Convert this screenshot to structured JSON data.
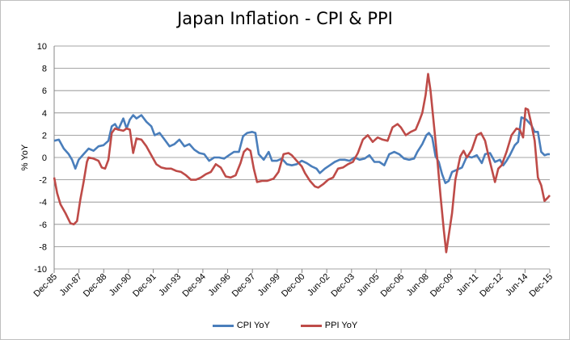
{
  "chart_data": {
    "type": "line",
    "title": "Japan Inflation - CPI & PPI",
    "xlabel": "",
    "ylabel": "% YoY",
    "ylim": [
      -10,
      10
    ],
    "yticks": [
      -10,
      -8,
      -6,
      -4,
      -2,
      0,
      2,
      4,
      6,
      8,
      10
    ],
    "xlim": [
      1985.917,
      2015.917
    ],
    "xticks": [
      {
        "label": "Dec-85",
        "t": 1985.917
      },
      {
        "label": "Jun-87",
        "t": 1987.417
      },
      {
        "label": "Dec-88",
        "t": 1988.917
      },
      {
        "label": "Jun-90",
        "t": 1990.417
      },
      {
        "label": "Dec-91",
        "t": 1991.917
      },
      {
        "label": "Jun-93",
        "t": 1993.417
      },
      {
        "label": "Dec-94",
        "t": 1994.917
      },
      {
        "label": "Jun-96",
        "t": 1996.417
      },
      {
        "label": "Dec-97",
        "t": 1997.917
      },
      {
        "label": "Jun-99",
        "t": 1999.417
      },
      {
        "label": "Dec-00",
        "t": 2000.917
      },
      {
        "label": "Jun-02",
        "t": 2002.417
      },
      {
        "label": "Dec-03",
        "t": 2003.917
      },
      {
        "label": "Jun-05",
        "t": 2005.417
      },
      {
        "label": "Dec-06",
        "t": 2006.917
      },
      {
        "label": "Jun-08",
        "t": 2008.417
      },
      {
        "label": "Dec-09",
        "t": 2009.917
      },
      {
        "label": "Jun-11",
        "t": 2011.417
      },
      {
        "label": "Dec-12",
        "t": 2012.917
      },
      {
        "label": "Jun-14",
        "t": 2014.417
      },
      {
        "label": "Dec-15",
        "t": 2015.917
      }
    ],
    "grid": "horizontal",
    "legend_position": "bottom",
    "series": [
      {
        "name": "CPI YoY",
        "color": "#4a7ebb",
        "points": [
          [
            1985.917,
            1.5
          ],
          [
            1986.2,
            1.6
          ],
          [
            1986.5,
            0.8
          ],
          [
            1986.8,
            0.3
          ],
          [
            1987.0,
            -0.2
          ],
          [
            1987.2,
            -1.0
          ],
          [
            1987.4,
            -0.2
          ],
          [
            1987.7,
            0.3
          ],
          [
            1988.0,
            0.8
          ],
          [
            1988.3,
            0.6
          ],
          [
            1988.6,
            1.0
          ],
          [
            1988.9,
            1.1
          ],
          [
            1989.2,
            1.5
          ],
          [
            1989.4,
            2.8
          ],
          [
            1989.6,
            3.0
          ],
          [
            1989.8,
            2.5
          ],
          [
            1990.1,
            3.5
          ],
          [
            1990.3,
            2.6
          ],
          [
            1990.5,
            3.4
          ],
          [
            1990.7,
            3.8
          ],
          [
            1990.9,
            3.5
          ],
          [
            1991.2,
            3.8
          ],
          [
            1991.5,
            3.2
          ],
          [
            1991.8,
            2.8
          ],
          [
            1992.0,
            2.0
          ],
          [
            1992.3,
            2.2
          ],
          [
            1992.6,
            1.6
          ],
          [
            1992.9,
            1.0
          ],
          [
            1993.2,
            1.2
          ],
          [
            1993.5,
            1.6
          ],
          [
            1993.8,
            1.0
          ],
          [
            1994.1,
            1.2
          ],
          [
            1994.4,
            0.7
          ],
          [
            1994.7,
            0.4
          ],
          [
            1995.0,
            0.3
          ],
          [
            1995.3,
            -0.3
          ],
          [
            1995.6,
            0.0
          ],
          [
            1995.9,
            0.0
          ],
          [
            1996.2,
            -0.1
          ],
          [
            1996.5,
            0.2
          ],
          [
            1996.8,
            0.5
          ],
          [
            1997.1,
            0.5
          ],
          [
            1997.35,
            1.9
          ],
          [
            1997.6,
            2.2
          ],
          [
            1997.9,
            2.3
          ],
          [
            1998.1,
            2.2
          ],
          [
            1998.3,
            0.3
          ],
          [
            1998.6,
            -0.2
          ],
          [
            1998.9,
            0.5
          ],
          [
            1999.1,
            -0.3
          ],
          [
            1999.4,
            -0.3
          ],
          [
            1999.7,
            -0.1
          ],
          [
            2000.0,
            -0.6
          ],
          [
            2000.3,
            -0.7
          ],
          [
            2000.6,
            -0.6
          ],
          [
            2000.9,
            -0.3
          ],
          [
            2001.2,
            -0.5
          ],
          [
            2001.5,
            -0.8
          ],
          [
            2001.8,
            -1.0
          ],
          [
            2002.0,
            -1.4
          ],
          [
            2002.3,
            -1.0
          ],
          [
            2002.6,
            -0.7
          ],
          [
            2002.9,
            -0.4
          ],
          [
            2003.2,
            -0.2
          ],
          [
            2003.5,
            -0.2
          ],
          [
            2003.8,
            -0.3
          ],
          [
            2004.1,
            0.0
          ],
          [
            2004.4,
            -0.2
          ],
          [
            2004.7,
            -0.1
          ],
          [
            2005.0,
            0.2
          ],
          [
            2005.3,
            -0.4
          ],
          [
            2005.6,
            -0.4
          ],
          [
            2005.9,
            -0.7
          ],
          [
            2006.2,
            0.3
          ],
          [
            2006.5,
            0.5
          ],
          [
            2006.8,
            0.3
          ],
          [
            2007.1,
            -0.1
          ],
          [
            2007.4,
            -0.2
          ],
          [
            2007.7,
            -0.1
          ],
          [
            2007.9,
            0.5
          ],
          [
            2008.2,
            1.2
          ],
          [
            2008.45,
            2.0
          ],
          [
            2008.6,
            2.2
          ],
          [
            2008.8,
            1.8
          ],
          [
            2009.0,
            0.1
          ],
          [
            2009.2,
            -0.4
          ],
          [
            2009.4,
            -1.5
          ],
          [
            2009.6,
            -2.3
          ],
          [
            2009.8,
            -2.1
          ],
          [
            2010.0,
            -1.3
          ],
          [
            2010.3,
            -1.1
          ],
          [
            2010.6,
            -0.9
          ],
          [
            2010.9,
            0.1
          ],
          [
            2011.2,
            0.0
          ],
          [
            2011.5,
            0.2
          ],
          [
            2011.8,
            -0.5
          ],
          [
            2012.0,
            0.3
          ],
          [
            2012.3,
            0.4
          ],
          [
            2012.6,
            -0.4
          ],
          [
            2012.9,
            -0.2
          ],
          [
            2013.1,
            -0.7
          ],
          [
            2013.3,
            -0.3
          ],
          [
            2013.5,
            0.2
          ],
          [
            2013.8,
            1.1
          ],
          [
            2014.0,
            1.4
          ],
          [
            2014.2,
            3.6
          ],
          [
            2014.5,
            3.4
          ],
          [
            2014.8,
            2.9
          ],
          [
            2015.0,
            2.3
          ],
          [
            2015.2,
            2.3
          ],
          [
            2015.4,
            0.5
          ],
          [
            2015.6,
            0.2
          ],
          [
            2015.8,
            0.3
          ],
          [
            2015.917,
            0.3
          ]
        ]
      },
      {
        "name": "PPI YoY",
        "color": "#be4b48",
        "points": [
          [
            1985.917,
            -1.8
          ],
          [
            1986.1,
            -3.2
          ],
          [
            1986.3,
            -4.2
          ],
          [
            1986.6,
            -5.0
          ],
          [
            1986.9,
            -5.9
          ],
          [
            1987.1,
            -6.0
          ],
          [
            1987.3,
            -5.7
          ],
          [
            1987.5,
            -3.8
          ],
          [
            1987.7,
            -2.2
          ],
          [
            1987.9,
            -0.4
          ],
          [
            1988.0,
            0.0
          ],
          [
            1988.3,
            -0.1
          ],
          [
            1988.6,
            -0.3
          ],
          [
            1988.8,
            -0.9
          ],
          [
            1989.0,
            -1.0
          ],
          [
            1989.2,
            -0.2
          ],
          [
            1989.4,
            2.2
          ],
          [
            1989.6,
            2.6
          ],
          [
            1989.8,
            2.5
          ],
          [
            1990.1,
            2.4
          ],
          [
            1990.3,
            2.6
          ],
          [
            1990.5,
            2.5
          ],
          [
            1990.7,
            0.4
          ],
          [
            1990.9,
            1.7
          ],
          [
            1991.2,
            1.6
          ],
          [
            1991.5,
            1.0
          ],
          [
            1991.8,
            0.2
          ],
          [
            1992.1,
            -0.6
          ],
          [
            1992.4,
            -0.9
          ],
          [
            1992.7,
            -1.0
          ],
          [
            1993.0,
            -1.0
          ],
          [
            1993.3,
            -1.2
          ],
          [
            1993.6,
            -1.3
          ],
          [
            1993.9,
            -1.6
          ],
          [
            1994.2,
            -2.0
          ],
          [
            1994.5,
            -2.0
          ],
          [
            1994.8,
            -1.8
          ],
          [
            1995.1,
            -1.5
          ],
          [
            1995.4,
            -1.3
          ],
          [
            1995.7,
            -0.6
          ],
          [
            1996.0,
            -0.9
          ],
          [
            1996.3,
            -1.7
          ],
          [
            1996.6,
            -1.8
          ],
          [
            1996.9,
            -1.6
          ],
          [
            1997.2,
            -0.5
          ],
          [
            1997.4,
            0.5
          ],
          [
            1997.6,
            0.8
          ],
          [
            1997.8,
            0.6
          ],
          [
            1998.0,
            -1.0
          ],
          [
            1998.2,
            -2.2
          ],
          [
            1998.5,
            -2.1
          ],
          [
            1998.8,
            -2.1
          ],
          [
            1999.0,
            -2.0
          ],
          [
            1999.2,
            -1.9
          ],
          [
            1999.5,
            -1.3
          ],
          [
            1999.8,
            0.3
          ],
          [
            2000.1,
            0.4
          ],
          [
            2000.3,
            0.2
          ],
          [
            2000.6,
            -0.3
          ],
          [
            2000.9,
            -0.8
          ],
          [
            2001.1,
            -1.4
          ],
          [
            2001.4,
            -2.1
          ],
          [
            2001.7,
            -2.6
          ],
          [
            2001.9,
            -2.7
          ],
          [
            2002.2,
            -2.4
          ],
          [
            2002.5,
            -2.0
          ],
          [
            2002.8,
            -1.8
          ],
          [
            2003.1,
            -1.0
          ],
          [
            2003.4,
            -0.9
          ],
          [
            2003.7,
            -0.6
          ],
          [
            2004.0,
            -0.4
          ],
          [
            2004.3,
            0.4
          ],
          [
            2004.6,
            1.6
          ],
          [
            2004.9,
            2.0
          ],
          [
            2005.2,
            1.4
          ],
          [
            2005.5,
            1.8
          ],
          [
            2005.8,
            1.6
          ],
          [
            2006.1,
            1.5
          ],
          [
            2006.4,
            2.7
          ],
          [
            2006.7,
            3.0
          ],
          [
            2006.9,
            2.7
          ],
          [
            2007.2,
            2.0
          ],
          [
            2007.5,
            2.3
          ],
          [
            2007.8,
            2.5
          ],
          [
            2008.0,
            3.2
          ],
          [
            2008.2,
            4.0
          ],
          [
            2008.4,
            5.6
          ],
          [
            2008.55,
            7.5
          ],
          [
            2008.7,
            6.0
          ],
          [
            2008.9,
            3.0
          ],
          [
            2009.1,
            0.0
          ],
          [
            2009.3,
            -3.4
          ],
          [
            2009.5,
            -6.5
          ],
          [
            2009.65,
            -8.5
          ],
          [
            2009.8,
            -7.0
          ],
          [
            2010.0,
            -5.0
          ],
          [
            2010.2,
            -2.0
          ],
          [
            2010.5,
            0.1
          ],
          [
            2010.7,
            0.6
          ],
          [
            2010.9,
            0.0
          ],
          [
            2011.2,
            0.7
          ],
          [
            2011.5,
            2.0
          ],
          [
            2011.75,
            2.2
          ],
          [
            2012.0,
            1.5
          ],
          [
            2012.2,
            0.2
          ],
          [
            2012.4,
            -1.0
          ],
          [
            2012.6,
            -2.2
          ],
          [
            2012.8,
            -1.0
          ],
          [
            2013.0,
            -0.7
          ],
          [
            2013.3,
            0.5
          ],
          [
            2013.6,
            2.0
          ],
          [
            2013.9,
            2.6
          ],
          [
            2014.1,
            2.5
          ],
          [
            2014.3,
            1.8
          ],
          [
            2014.45,
            4.4
          ],
          [
            2014.6,
            4.3
          ],
          [
            2014.8,
            3.0
          ],
          [
            2015.0,
            1.5
          ],
          [
            2015.2,
            -1.8
          ],
          [
            2015.4,
            -2.5
          ],
          [
            2015.6,
            -3.9
          ],
          [
            2015.8,
            -3.6
          ],
          [
            2015.917,
            -3.4
          ]
        ]
      }
    ]
  }
}
